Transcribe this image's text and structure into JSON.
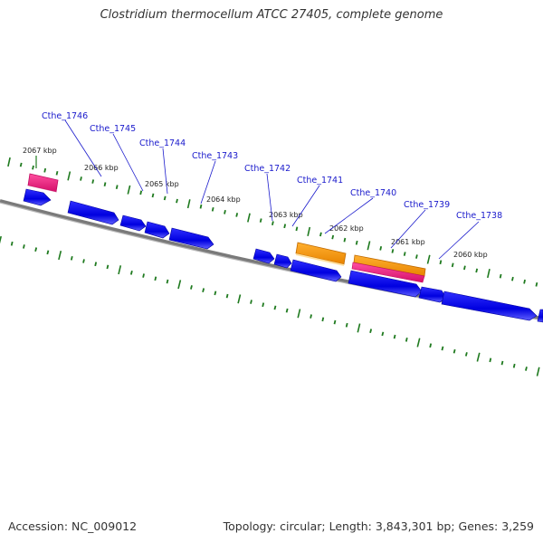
{
  "title": "Clostridium thermocellum ATCC 27405, complete genome",
  "footer": {
    "accession": "Accession: NC_009012",
    "topology": "Topology: circular; Length: 3,843,301 bp; Genes: 3,259"
  },
  "colors": {
    "background": "#ffffff",
    "backbone": "#7a7a7a",
    "cds_forward": "#0000e0",
    "cds_reverse": "#0000e0",
    "rna_pink": "#e8177a",
    "orange": "#ff9900",
    "gene_label": "#1a1acc",
    "tick": "#1f7a1f",
    "kbp_label": "#222222"
  },
  "gene_labels": [
    "Cthe_1746",
    "Cthe_1745",
    "Cthe_1744",
    "Cthe_1743",
    "Cthe_1742",
    "Cthe_1741",
    "Cthe_1740",
    "Cthe_1739",
    "Cthe_1738"
  ],
  "kbp_labels": [
    "2067 kbp",
    "2066 kbp",
    "2065 kbp",
    "2064 kbp",
    "2063 kbp",
    "2062 kbp",
    "2061 kbp",
    "2060 kbp"
  ]
}
